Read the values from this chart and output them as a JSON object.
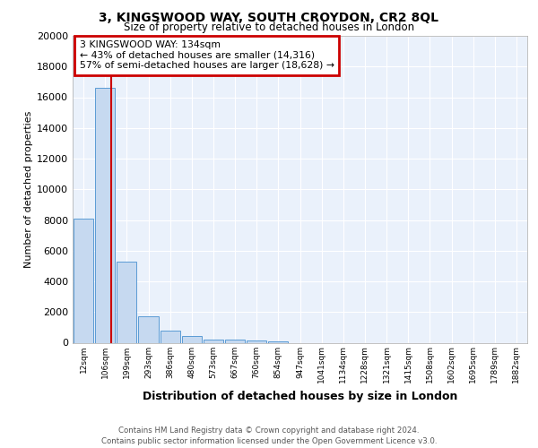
{
  "title_line1": "3, KINGSWOOD WAY, SOUTH CROYDON, CR2 8QL",
  "title_line2": "Size of property relative to detached houses in London",
  "xlabel": "Distribution of detached houses by size in London",
  "ylabel": "Number of detached properties",
  "bar_labels": [
    "12sqm",
    "106sqm",
    "199sqm",
    "293sqm",
    "386sqm",
    "480sqm",
    "573sqm",
    "667sqm",
    "760sqm",
    "854sqm",
    "947sqm",
    "1041sqm",
    "1134sqm",
    "1228sqm",
    "1321sqm",
    "1415sqm",
    "1508sqm",
    "1602sqm",
    "1695sqm",
    "1789sqm",
    "1882sqm"
  ],
  "bar_values": [
    8100,
    16600,
    5300,
    1700,
    800,
    430,
    230,
    180,
    120,
    110,
    0,
    0,
    0,
    0,
    0,
    0,
    0,
    0,
    0,
    0,
    0
  ],
  "bar_color": "#c6d9f0",
  "bar_edge_color": "#5b9bd5",
  "ylim": [
    0,
    20000
  ],
  "yticks": [
    0,
    2000,
    4000,
    6000,
    8000,
    10000,
    12000,
    14000,
    16000,
    18000,
    20000
  ],
  "annotation_text": "3 KINGSWOOD WAY: 134sqm\n← 43% of detached houses are smaller (14,316)\n57% of semi-detached houses are larger (18,628) →",
  "annotation_box_color": "#ffffff",
  "annotation_box_edge": "#cc0000",
  "property_line_color": "#cc0000",
  "footer_line1": "Contains HM Land Registry data © Crown copyright and database right 2024.",
  "footer_line2": "Contains public sector information licensed under the Open Government Licence v3.0.",
  "background_color": "#eaf1fb",
  "grid_color": "#ffffff",
  "fig_bg": "#ffffff"
}
